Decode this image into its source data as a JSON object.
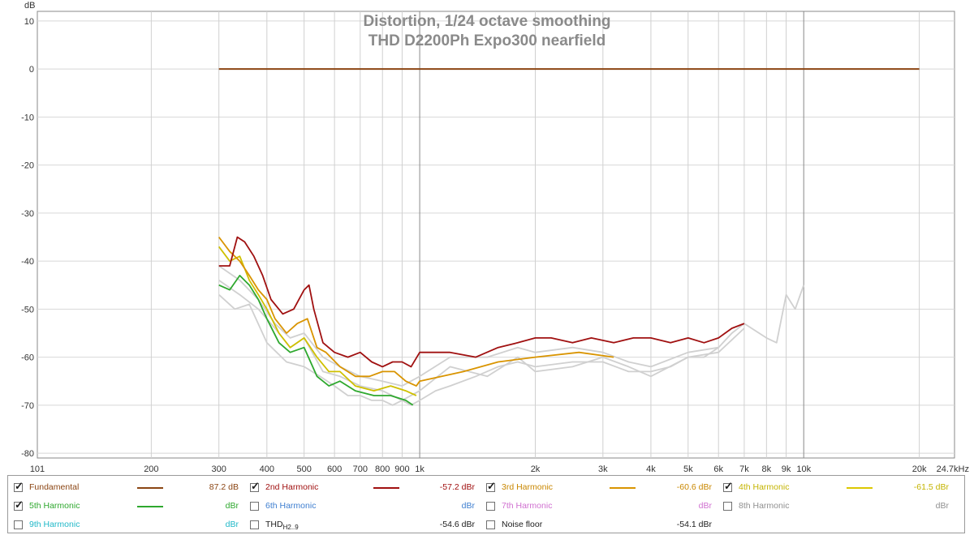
{
  "chart_data": {
    "type": "line",
    "title": "Distortion, 1/24 octave smoothing",
    "subtitle": "THD D2200Ph Expo300 nearfield",
    "ylabel": "dB",
    "xlabel_unit": "Hz",
    "x_scale": "log",
    "xlim": [
      101,
      24700
    ],
    "ylim": [
      -81,
      12
    ],
    "grid": true,
    "y_ticks": [
      10,
      0,
      -10,
      -20,
      -30,
      -40,
      -50,
      -60,
      -70,
      -80
    ],
    "x_ticks": [
      {
        "v": 101,
        "label": "101"
      },
      {
        "v": 200,
        "label": "200"
      },
      {
        "v": 300,
        "label": "300"
      },
      {
        "v": 400,
        "label": "400"
      },
      {
        "v": 500,
        "label": "500"
      },
      {
        "v": 600,
        "label": "600"
      },
      {
        "v": 700,
        "label": "700"
      },
      {
        "v": 800,
        "label": "800"
      },
      {
        "v": 900,
        "label": "900"
      },
      {
        "v": 1000,
        "label": "1k"
      },
      {
        "v": 2000,
        "label": "2k"
      },
      {
        "v": 3000,
        "label": "3k"
      },
      {
        "v": 4000,
        "label": "4k"
      },
      {
        "v": 5000,
        "label": "5k"
      },
      {
        "v": 6000,
        "label": "6k"
      },
      {
        "v": 7000,
        "label": "7k"
      },
      {
        "v": 8000,
        "label": "8k"
      },
      {
        "v": 9000,
        "label": "9k"
      },
      {
        "v": 10000,
        "label": "10k"
      },
      {
        "v": 20000,
        "label": "20k"
      },
      {
        "v": 24700,
        "label": "24.7kHz"
      }
    ],
    "series": [
      {
        "name": "Fundamental",
        "color": "#8b4513",
        "x": [
          300,
          20000
        ],
        "y": [
          0,
          0
        ]
      },
      {
        "name": "Harmonic trace (grey, hidden series)",
        "color": "#d0d0d0",
        "x": [
          300,
          330,
          360,
          400,
          450,
          500,
          550,
          600,
          650,
          700,
          750,
          800,
          850,
          900,
          950,
          1000,
          1100,
          1200,
          1400,
          1600,
          1800,
          2000,
          2500,
          3000,
          3500,
          4000,
          4500,
          5000,
          5500,
          6000,
          6500,
          7000,
          8000,
          8500,
          9000,
          9500,
          10000
        ],
        "y": [
          -47,
          -50,
          -49,
          -57,
          -61,
          -62,
          -64,
          -66,
          -68,
          -68,
          -69,
          -69,
          -70,
          -69,
          -70,
          -69,
          -67,
          -66,
          -64,
          -62,
          -61,
          -62,
          -61,
          -61,
          -63,
          -63,
          -62,
          -60,
          -60,
          -58,
          -55,
          -53,
          -56,
          -57,
          -47,
          -50,
          -45
        ]
      },
      {
        "name": "Harmonic trace 2 (grey)",
        "color": "#d0d0d0",
        "x": [
          300,
          340,
          380,
          420,
          460,
          500,
          560,
          620,
          700,
          800,
          900,
          1000,
          1200,
          1500,
          1800,
          2000,
          2500,
          3000,
          3500,
          4000,
          5000,
          6000,
          7000
        ],
        "y": [
          -44,
          -47,
          -50,
          -54,
          -58,
          -56,
          -63,
          -64,
          -66,
          -67,
          -69,
          -67,
          -62,
          -64,
          -60,
          -63,
          -62,
          -60,
          -62,
          -64,
          -60,
          -59,
          -54
        ]
      },
      {
        "name": "Harmonic trace 3 (grey)",
        "color": "#d0d0d0",
        "x": [
          300,
          340,
          380,
          420,
          460,
          500,
          560,
          620,
          700,
          800,
          900,
          1000,
          1200,
          1500,
          1800,
          2000,
          2500,
          3000,
          3500,
          4000,
          5000,
          6000
        ],
        "y": [
          -41,
          -44,
          -48,
          -53,
          -56,
          -55,
          -60,
          -62,
          -64,
          -65,
          -66,
          -64,
          -60,
          -60,
          -58,
          -59,
          -58,
          -59,
          -61,
          -62,
          -59,
          -58
        ]
      },
      {
        "name": "5th Harmonic",
        "color": "#2ea82e",
        "x": [
          300,
          320,
          340,
          360,
          380,
          400,
          430,
          460,
          500,
          540,
          580,
          620,
          680,
          760,
          840,
          920,
          960
        ],
        "y": [
          -45,
          -46,
          -43,
          -45,
          -48,
          -52,
          -57,
          -59,
          -58,
          -64,
          -66,
          -65,
          -67,
          -68,
          -68,
          -69,
          -70
        ]
      },
      {
        "name": "4th Harmonic",
        "color": "#cfc000",
        "x": [
          300,
          320,
          340,
          360,
          380,
          400,
          430,
          460,
          500,
          540,
          580,
          620,
          680,
          760,
          840,
          920,
          980
        ],
        "y": [
          -37,
          -40,
          -39,
          -44,
          -47,
          -50,
          -55,
          -58,
          -56,
          -60,
          -63,
          -63,
          -66,
          -67,
          -66,
          -67,
          -68
        ]
      },
      {
        "name": "3rd Harmonic",
        "color": "#d99400",
        "x": [
          300,
          320,
          340,
          360,
          380,
          400,
          420,
          450,
          480,
          510,
          540,
          570,
          620,
          680,
          740,
          800,
          860,
          920,
          980,
          1000,
          1300,
          1600,
          2000,
          2600,
          3200
        ],
        "y": [
          -35,
          -38,
          -40,
          -43,
          -46,
          -48,
          -52,
          -55,
          -53,
          -52,
          -58,
          -59,
          -62,
          -64,
          -64,
          -63,
          -63,
          -65,
          -66,
          -65,
          -63,
          -61,
          -60,
          -59,
          -60
        ]
      },
      {
        "name": "2nd Harmonic",
        "color": "#a01010",
        "x": [
          300,
          320,
          335,
          350,
          370,
          390,
          410,
          440,
          470,
          500,
          515,
          530,
          560,
          600,
          650,
          700,
          750,
          800,
          850,
          900,
          950,
          1000,
          1100,
          1200,
          1400,
          1600,
          1800,
          2000,
          2200,
          2500,
          2800,
          3200,
          3600,
          4000,
          4500,
          5000,
          5500,
          6000,
          6500,
          7000
        ],
        "y": [
          -41,
          -41,
          -35,
          -36,
          -39,
          -43,
          -48,
          -51,
          -50,
          -46,
          -45,
          -50,
          -57,
          -59,
          -60,
          -59,
          -61,
          -62,
          -61,
          -61,
          -62,
          -59,
          -59,
          -59,
          -60,
          -58,
          -57,
          -56,
          -56,
          -57,
          -56,
          -57,
          -56,
          -56,
          -57,
          -56,
          -57,
          -56,
          -54,
          -53
        ]
      }
    ]
  },
  "legend": {
    "items": [
      {
        "key": "fundamental",
        "label": "Fundamental",
        "checked": true,
        "label_color": "#8b4513",
        "swatch": "#8b4513",
        "value": "87.2 dB",
        "value_color": "#8b4513"
      },
      {
        "key": "h2",
        "label": "2nd Harmonic",
        "checked": true,
        "label_color": "#a01010",
        "swatch": "#a01010",
        "value": "-57.2 dBr",
        "value_color": "#a01010"
      },
      {
        "key": "h3",
        "label": "3rd Harmonic",
        "checked": true,
        "label_color": "#c98700",
        "swatch": "#d99400",
        "value": "-60.6 dBr",
        "value_color": "#c98700"
      },
      {
        "key": "h4",
        "label": "4th Harmonic",
        "checked": true,
        "label_color": "#c4b400",
        "swatch": "#dcc800",
        "value": "-61.5 dBr",
        "value_color": "#c4b400"
      },
      {
        "key": "h5",
        "label": "5th Harmonic",
        "checked": true,
        "label_color": "#2ea82e",
        "swatch": "#2ea82e",
        "value": "dBr",
        "value_color": "#2ea82e"
      },
      {
        "key": "h6",
        "label": "6th Harmonic",
        "checked": false,
        "label_color": "#3f7fd0",
        "swatch": "",
        "value": "dBr",
        "value_color": "#3f7fd0"
      },
      {
        "key": "h7",
        "label": "7th Harmonic",
        "checked": false,
        "label_color": "#d070d0",
        "swatch": "",
        "value": "dBr",
        "value_color": "#d070d0"
      },
      {
        "key": "h8",
        "label": "8th Harmonic",
        "checked": false,
        "label_color": "#909090",
        "swatch": "",
        "value": "dBr",
        "value_color": "#909090"
      },
      {
        "key": "h9",
        "label": "9th Harmonic",
        "checked": false,
        "label_color": "#20b8c8",
        "swatch": "",
        "value": "dBr",
        "value_color": "#20b8c8"
      },
      {
        "key": "thd",
        "label": "THD",
        "label_sub": "H2..9",
        "checked": false,
        "label_color": "#202020",
        "swatch": "",
        "value": "-54.6 dBr",
        "value_color": "#202020"
      },
      {
        "key": "noise",
        "label": "Noise floor",
        "checked": false,
        "label_color": "#202020",
        "swatch": "",
        "value": "-54.1 dBr",
        "value_color": "#202020"
      }
    ]
  }
}
